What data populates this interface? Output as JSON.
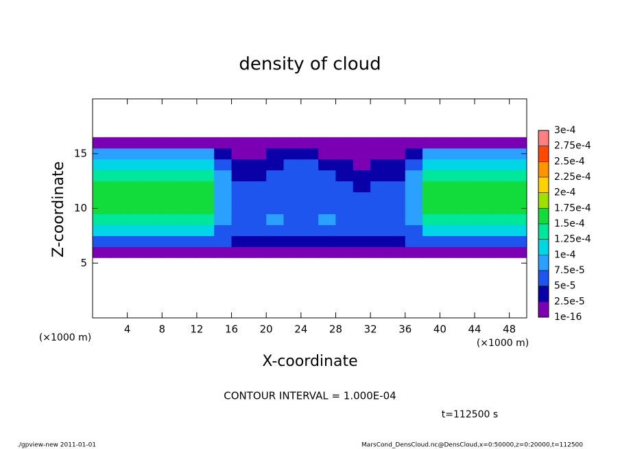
{
  "chart_data": {
    "type": "heatmap",
    "title": "density of cloud",
    "xlabel": "X-coordinate",
    "ylabel": "Z-coordinate",
    "xunit": "(×1000 m)",
    "yunit": "(×1000 m)",
    "annotation": "CONTOUR INTERVAL = 1.000E-04",
    "time": "t=112500 s",
    "footer_left": "./gpview-new   2011-01-01",
    "footer_right": "MarsCond_DensCloud.nc@DensCloud,x=0:50000,z=0:20000,t=112500",
    "xlim": [
      0,
      50
    ],
    "ylim": [
      0,
      20
    ],
    "xticks": [
      4,
      8,
      12,
      16,
      20,
      24,
      28,
      32,
      36,
      40,
      44,
      48
    ],
    "yticks": [
      5,
      10,
      15
    ],
    "x": [
      1,
      3,
      5,
      7,
      9,
      11,
      13,
      15,
      17,
      19,
      21,
      23,
      25,
      27,
      29,
      31,
      33,
      35,
      37,
      39,
      41,
      43,
      45,
      47,
      49
    ],
    "y": [
      6,
      7,
      8,
      9,
      10,
      11,
      12,
      13,
      14,
      15,
      16
    ],
    "z": [
      [
        1e-05,
        1e-05,
        1e-05,
        1e-05,
        1e-05,
        1e-05,
        1e-05,
        1e-05,
        1e-05,
        1e-05,
        1e-05,
        1e-05,
        1e-05,
        1e-05,
        1e-05,
        1e-05,
        1e-05,
        1e-05,
        1e-05,
        1e-05,
        1e-05,
        1e-05,
        1e-05,
        1e-05,
        1e-05
      ],
      [
        7e-05,
        7e-05,
        7e-05,
        7e-05,
        7e-05,
        7e-05,
        7e-05,
        5e-05,
        4e-05,
        4e-05,
        3e-05,
        4e-05,
        4e-05,
        4e-05,
        3e-05,
        4e-05,
        4e-05,
        3e-05,
        5e-05,
        7e-05,
        7e-05,
        7e-05,
        7e-05,
        7e-05,
        7e-05
      ],
      [
        0.00011,
        0.00011,
        0.00011,
        0.00011,
        0.00011,
        0.00011,
        0.00011,
        7e-05,
        6e-05,
        6e-05,
        7e-05,
        6e-05,
        7e-05,
        6e-05,
        6e-05,
        5e-05,
        6e-05,
        5e-05,
        7e-05,
        0.00011,
        0.00011,
        0.00011,
        0.00011,
        0.00011,
        0.00011
      ],
      [
        0.00014,
        0.00014,
        0.00014,
        0.00014,
        0.00014,
        0.00014,
        0.00014,
        8e-05,
        7e-05,
        7e-05,
        8e-05,
        7e-05,
        7e-05,
        9e-05,
        7e-05,
        6e-05,
        6e-05,
        6e-05,
        8e-05,
        0.00014,
        0.00014,
        0.00014,
        0.00014,
        0.00014,
        0.00014
      ],
      [
        0.000155,
        0.000155,
        0.000155,
        0.000155,
        0.000155,
        0.000155,
        0.000155,
        9e-05,
        7e-05,
        7e-05,
        7e-05,
        7e-05,
        7e-05,
        7e-05,
        7e-05,
        6e-05,
        6e-05,
        6e-05,
        9e-05,
        0.000155,
        0.000155,
        0.000155,
        0.000155,
        0.000155,
        0.000155
      ],
      [
        0.00016,
        0.00016,
        0.00016,
        0.00016,
        0.00016,
        0.00016,
        0.00016,
        9e-05,
        6e-05,
        6e-05,
        6e-05,
        6e-05,
        7e-05,
        6e-05,
        6e-05,
        5e-05,
        6e-05,
        6e-05,
        9e-05,
        0.00016,
        0.00016,
        0.00016,
        0.00016,
        0.00016,
        0.00016
      ],
      [
        0.000155,
        0.000155,
        0.000155,
        0.000155,
        0.000155,
        0.000155,
        0.000155,
        9e-05,
        5e-05,
        5e-05,
        6e-05,
        6e-05,
        5e-05,
        6e-05,
        5e-05,
        4e-05,
        5e-05,
        5e-05,
        9e-05,
        0.00015,
        0.00015,
        0.00015,
        0.00015,
        0.00015,
        0.00015
      ],
      [
        0.00014,
        0.00014,
        0.00014,
        0.00014,
        0.00014,
        0.00014,
        0.00014,
        8e-05,
        4e-05,
        4e-05,
        5e-05,
        6e-05,
        6e-05,
        5e-05,
        4e-05,
        3e-05,
        4e-05,
        4e-05,
        8e-05,
        0.000135,
        0.000135,
        0.000135,
        0.000135,
        0.000135,
        0.000135
      ],
      [
        0.00011,
        0.00011,
        0.00011,
        0.00011,
        0.00011,
        0.00011,
        0.00011,
        6e-05,
        3e-05,
        3e-05,
        4e-05,
        5e-05,
        5e-05,
        4e-05,
        3e-05,
        2e-05,
        3e-05,
        3e-05,
        6e-05,
        0.00011,
        0.00011,
        0.00011,
        0.00011,
        0.00011,
        0.00011
      ],
      [
        8e-05,
        8e-05,
        8e-05,
        8e-05,
        8e-05,
        8e-05,
        8e-05,
        4e-05,
        2e-05,
        2e-05,
        3e-05,
        3e-05,
        3e-05,
        2e-05,
        2e-05,
        1e-05,
        2e-05,
        2e-05,
        4e-05,
        8e-05,
        8e-05,
        8e-05,
        8e-05,
        8e-05,
        8e-05
      ],
      [
        1e-05,
        1e-05,
        1e-05,
        1e-05,
        1e-05,
        1e-05,
        1e-05,
        1e-05,
        1e-05,
        1e-05,
        1e-05,
        1e-05,
        1e-05,
        1e-05,
        1e-05,
        1e-05,
        1e-05,
        1e-05,
        1e-05,
        1e-05,
        1e-05,
        1e-05,
        1e-05,
        1e-05,
        1e-05
      ]
    ],
    "levels": [
      {
        "value": 1e-16,
        "label": "1e-16"
      },
      {
        "value": 2.5e-05,
        "label": "2.5e-5"
      },
      {
        "value": 5e-05,
        "label": "5e-5"
      },
      {
        "value": 7.5e-05,
        "label": "7.5e-5"
      },
      {
        "value": 0.0001,
        "label": "1e-4"
      },
      {
        "value": 0.000125,
        "label": "1.25e-4"
      },
      {
        "value": 0.00015,
        "label": "1.5e-4"
      },
      {
        "value": 0.000175,
        "label": "1.75e-4"
      },
      {
        "value": 0.0002,
        "label": "2e-4"
      },
      {
        "value": 0.000225,
        "label": "2.25e-4"
      },
      {
        "value": 0.00025,
        "label": "2.5e-4"
      },
      {
        "value": 0.000275,
        "label": "2.75e-4"
      },
      {
        "value": 0.0003,
        "label": "3e-4"
      }
    ],
    "colors": [
      "#7b00b4",
      "#0a00a8",
      "#1e55ee",
      "#2aa0ff",
      "#00d6e6",
      "#00e69a",
      "#12dc3c",
      "#9ee000",
      "#ffd200",
      "#ff9600",
      "#ff4a00",
      "#ff8080"
    ]
  }
}
